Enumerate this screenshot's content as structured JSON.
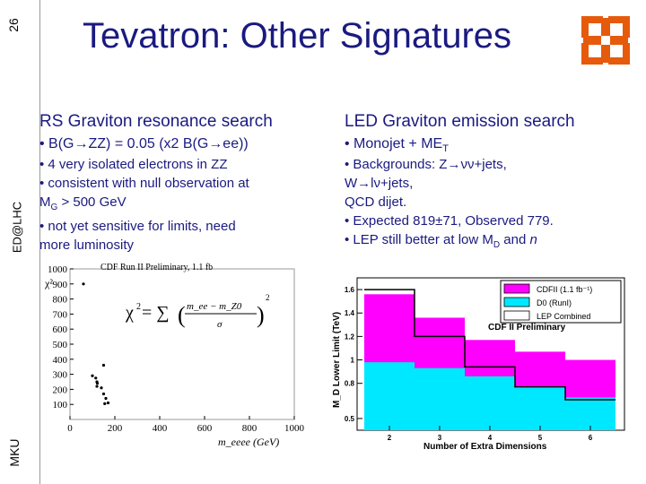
{
  "sidebar": {
    "slide_number": "26",
    "conference": "ED@LHC",
    "institution": "MKU"
  },
  "title": "Tevatron: Other Signatures",
  "left": {
    "heading": "RS Graviton resonance search",
    "bullet_main": "• B(G→ZZ) = 0.05 (x2 B(G→ee))",
    "bullets": [
      "• 4 very isolated electrons in ZZ",
      "• consistent with null observation at",
      "M",
      "G",
      " > 500 GeV",
      "• not yet sensitive for limits, need",
      "more luminosity"
    ]
  },
  "right": {
    "heading": "LED Graviton emission search",
    "bullet_main_a": "• Monojet + ME",
    "bullet_main_sub": "T",
    "bullets": [
      "• Backgrounds: Z→νν+jets,",
      "W→lν+jets,",
      "QCD dijet.",
      "• Expected 819±71, Observed 779.",
      "• LEP still better at low M",
      "D",
      " and ",
      "n"
    ]
  },
  "chart_data": [
    {
      "type": "scatter",
      "title": "CDF Run II Preliminary, 1.1 fb",
      "xlabel": "m_eeee (GeV)",
      "ylabel": "χ²",
      "formula_lhs": "χ",
      "formula_sum": "= ∑",
      "formula_num": "m_ee − m_Z0",
      "formula_den": "σ",
      "xlim": [
        0,
        1000
      ],
      "ylim": [
        0,
        1000
      ],
      "x_ticks": [
        "0",
        "200",
        "400",
        "600",
        "800",
        "1000"
      ],
      "y_ticks": [
        "100",
        "200",
        "300",
        "400",
        "500",
        "600",
        "700",
        "800",
        "900",
        "1000"
      ],
      "points": [
        {
          "x": 60,
          "y": 900
        },
        {
          "x": 150,
          "y": 360
        },
        {
          "x": 100,
          "y": 290
        },
        {
          "x": 115,
          "y": 275
        },
        {
          "x": 120,
          "y": 250
        },
        {
          "x": 122,
          "y": 240
        },
        {
          "x": 120,
          "y": 220
        },
        {
          "x": 140,
          "y": 210
        },
        {
          "x": 150,
          "y": 170
        },
        {
          "x": 160,
          "y": 140
        },
        {
          "x": 170,
          "y": 110
        },
        {
          "x": 155,
          "y": 105
        }
      ]
    },
    {
      "type": "bar",
      "title": "CDF II Preliminary",
      "xlabel": "Number of Extra Dimensions",
      "ylabel": "M_D Lower Limit (TeV)",
      "ylim": [
        0.4,
        1.7
      ],
      "y_ticks": [
        "0.5",
        "0.8",
        "1",
        "1.2",
        "1.4",
        "1.6"
      ],
      "categories": [
        "2",
        "3",
        "4",
        "5",
        "6"
      ],
      "legend_position": "top-right",
      "series": [
        {
          "name": "CDFII (1.1 fb⁻¹)",
          "color": "#ff00ff",
          "values": [
            1.56,
            1.36,
            1.17,
            1.07,
            1.0
          ]
        },
        {
          "name": "D0 (RunI)",
          "color": "#00e8ff",
          "values": [
            0.98,
            0.93,
            0.86,
            0.77,
            0.68
          ]
        },
        {
          "name": "LEP Combined",
          "color": "#ffffff",
          "values": [
            1.6,
            1.2,
            0.94,
            0.77,
            0.66
          ]
        }
      ]
    }
  ]
}
